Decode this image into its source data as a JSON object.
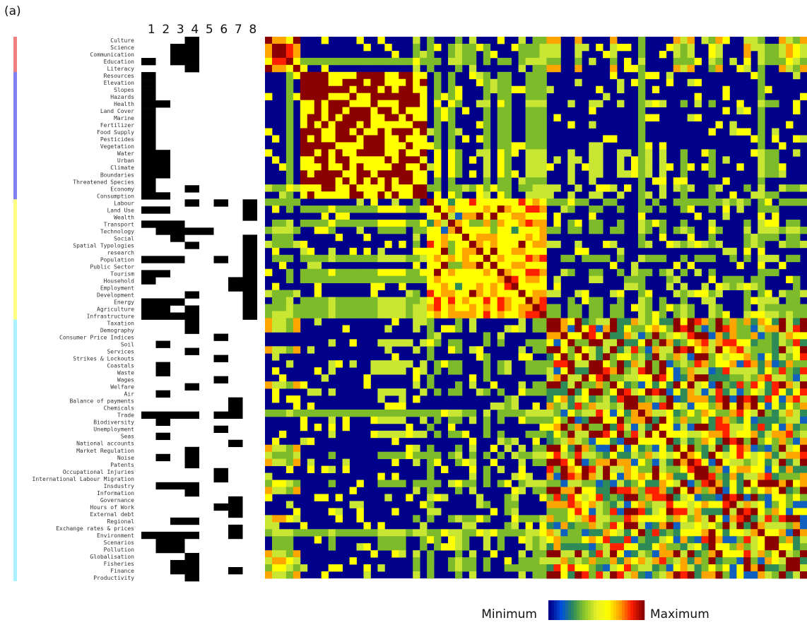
{
  "panel_label": "(a)",
  "colors": {
    "min": "#00008b",
    "max": "#8b0000",
    "group_bar": [
      "#f08080",
      "#8080f0",
      "#ffff80",
      "#aaf2ff"
    ],
    "matrix_palette": [
      "#00008b",
      "#1060c0",
      "#2e8b57",
      "#7dbb2a",
      "#c8e632",
      "#ffff00",
      "#ffa500",
      "#ff2000",
      "#8b0000"
    ]
  },
  "legend": {
    "min_label": "Minimum",
    "max_label": "Maximum"
  },
  "chart_data": {
    "type": "heatmap",
    "title": "",
    "membership_columns": [
      "1",
      "2",
      "3",
      "4",
      "5",
      "6",
      "7",
      "8"
    ],
    "rows": [
      "Culture",
      "Science",
      "Communication",
      "Education",
      "Literacy",
      "Resources",
      "Elevation",
      "Slopes",
      "Hazards",
      "Health",
      "Land Cover",
      "Marine",
      "Fertilizer",
      "Food Supply",
      "Pesticides",
      "Vegetation",
      "Water",
      "Urban",
      "Climate",
      "Boundaries",
      "Threatened Species",
      "Economy",
      "Consumption",
      "Labour",
      "Land Use",
      "Wealth",
      "Transport",
      "Technology",
      "Social",
      "Spatial Typologies",
      "research",
      "Population",
      "Public Sector",
      "Tourism",
      "Household",
      "Employment",
      "Development",
      "Energy",
      "Agriculture",
      "Infrastructure",
      "Taxation",
      "Demography",
      "Consumer Price Indices",
      "Soil",
      "Services",
      "Strikes & Lockouts",
      "Coastals",
      "Waste",
      "Wages",
      "Welfare",
      "Air",
      "Balance of payments",
      "Chemicals",
      "Trade",
      "Biodiversity",
      "Unemployment",
      "Seas",
      "National accounts",
      "Market Regulation",
      "Noise",
      "Patents",
      "Occupational Injuries",
      "International Labour Migration",
      "Insdustry",
      "Information",
      "Governance",
      "Hours of Work",
      "External debt",
      "Regional",
      "Exchange rates & prices",
      "Environment",
      "Scenarios",
      "Pollution",
      "Globalisation",
      "Fisheries",
      "Finance",
      "Productivity"
    ],
    "groups": [
      {
        "start": 0,
        "end": 4,
        "color_index": 0
      },
      {
        "start": 5,
        "end": 22,
        "color_index": 1
      },
      {
        "start": 23,
        "end": 39,
        "color_index": 2
      },
      {
        "start": 40,
        "end": 76,
        "color_index": 3
      }
    ],
    "membership": [
      [
        4
      ],
      [
        3,
        4
      ],
      [
        3,
        4
      ],
      [
        1,
        3,
        4
      ],
      [
        4
      ],
      [
        1
      ],
      [
        1
      ],
      [
        1
      ],
      [
        1
      ],
      [
        1,
        2
      ],
      [
        1
      ],
      [
        1
      ],
      [
        1
      ],
      [
        1
      ],
      [
        1
      ],
      [
        1
      ],
      [
        1,
        2
      ],
      [
        1,
        2
      ],
      [
        1,
        2
      ],
      [
        1,
        2
      ],
      [
        1
      ],
      [
        1,
        4
      ],
      [
        1,
        2
      ],
      [
        4,
        6,
        8
      ],
      [
        1,
        2,
        8
      ],
      [
        8
      ],
      [
        1,
        2,
        3
      ],
      [
        2,
        3,
        4,
        5
      ],
      [
        3,
        8
      ],
      [
        4,
        8
      ],
      [
        8
      ],
      [
        1,
        2,
        3,
        6,
        8
      ],
      [
        8
      ],
      [
        1,
        2,
        8
      ],
      [
        1,
        7,
        8
      ],
      [
        7,
        8
      ],
      [
        4,
        8
      ],
      [
        1,
        2,
        3,
        8
      ],
      [
        1,
        2,
        4,
        8
      ],
      [
        1,
        2,
        3,
        4,
        8
      ],
      [
        4
      ],
      [
        4
      ],
      [
        6
      ],
      [
        2
      ],
      [
        4
      ],
      [
        6
      ],
      [
        2
      ],
      [
        2
      ],
      [
        6
      ],
      [
        4
      ],
      [
        2
      ],
      [
        7
      ],
      [
        7
      ],
      [
        1,
        2,
        3,
        4,
        6,
        7
      ],
      [
        2
      ],
      [
        6
      ],
      [
        2
      ],
      [
        7
      ],
      [
        4
      ],
      [
        2,
        4
      ],
      [
        4
      ],
      [
        6
      ],
      [
        6
      ],
      [
        2,
        3,
        4
      ],
      [
        4
      ],
      [
        7
      ],
      [
        6,
        7
      ],
      [
        7
      ],
      [
        3,
        4
      ],
      [
        7
      ],
      [
        1,
        2,
        3,
        4,
        7
      ],
      [
        2,
        3
      ],
      [
        2,
        3
      ],
      [
        4
      ],
      [
        3,
        4
      ],
      [
        3,
        4,
        7
      ],
      [
        4
      ]
    ],
    "heat_levels": "0=Minimum ... 8=Maximum"
  }
}
